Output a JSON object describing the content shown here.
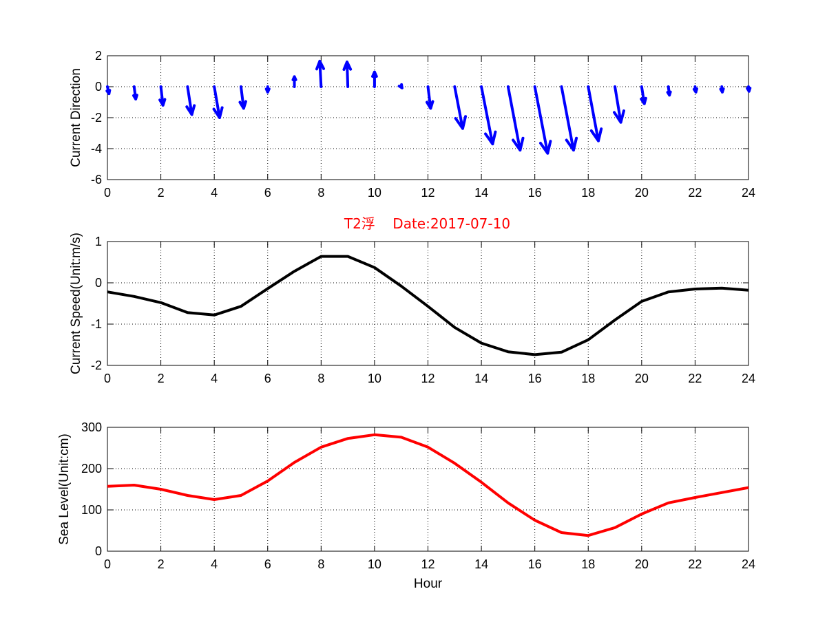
{
  "chart_data": [
    {
      "type": "quiver",
      "ylabel": "Current Direction",
      "xlabel": "",
      "xlim": [
        0,
        24
      ],
      "ylim": [
        -6,
        2
      ],
      "xticks": [
        0,
        2,
        4,
        6,
        8,
        10,
        12,
        14,
        16,
        18,
        20,
        22,
        24
      ],
      "yticks": [
        -6,
        -4,
        -2,
        0,
        2
      ],
      "grid": true,
      "color": "#0000ff",
      "vectors": [
        {
          "x": 0,
          "u": 0.06,
          "v": -0.45
        },
        {
          "x": 1,
          "u": 0.06,
          "v": -0.8
        },
        {
          "x": 2,
          "u": 0.08,
          "v": -1.2
        },
        {
          "x": 3,
          "u": 0.16,
          "v": -1.8
        },
        {
          "x": 4,
          "u": 0.2,
          "v": -2.0
        },
        {
          "x": 5,
          "u": 0.1,
          "v": -1.4
        },
        {
          "x": 6,
          "u": 0.0,
          "v": -0.35
        },
        {
          "x": 7,
          "u": 0.0,
          "v": 0.65
        },
        {
          "x": 8,
          "u": -0.05,
          "v": 1.65
        },
        {
          "x": 9,
          "u": -0.03,
          "v": 1.6
        },
        {
          "x": 10,
          "u": 0.0,
          "v": 0.95
        },
        {
          "x": 11,
          "u": 0.03,
          "v": -0.08
        },
        {
          "x": 12,
          "u": 0.1,
          "v": -1.4
        },
        {
          "x": 13,
          "u": 0.3,
          "v": -2.7
        },
        {
          "x": 14,
          "u": 0.42,
          "v": -3.7
        },
        {
          "x": 15,
          "u": 0.45,
          "v": -4.1
        },
        {
          "x": 16,
          "u": 0.48,
          "v": -4.3
        },
        {
          "x": 17,
          "u": 0.45,
          "v": -4.1
        },
        {
          "x": 18,
          "u": 0.38,
          "v": -3.5
        },
        {
          "x": 19,
          "u": 0.22,
          "v": -2.3
        },
        {
          "x": 20,
          "u": 0.1,
          "v": -1.1
        },
        {
          "x": 21,
          "u": 0.04,
          "v": -0.55
        },
        {
          "x": 22,
          "u": 0.03,
          "v": -0.35
        },
        {
          "x": 23,
          "u": 0.02,
          "v": -0.35
        },
        {
          "x": 24,
          "u": 0.02,
          "v": -0.3
        }
      ]
    },
    {
      "type": "line",
      "title": "T2浮    Date:2017-07-10",
      "title_color": "#ff0000",
      "ylabel": "Current Speed(Unit:m/s)",
      "xlabel": "",
      "xlim": [
        0,
        24
      ],
      "ylim": [
        -2,
        1
      ],
      "xticks": [
        0,
        2,
        4,
        6,
        8,
        10,
        12,
        14,
        16,
        18,
        20,
        22,
        24
      ],
      "yticks": [
        -2,
        -1,
        0,
        1
      ],
      "grid": true,
      "color": "#000000",
      "x": [
        0,
        1,
        2,
        3,
        4,
        5,
        6,
        7,
        8,
        9,
        10,
        11,
        12,
        13,
        14,
        15,
        16,
        17,
        18,
        19,
        20,
        21,
        22,
        23,
        24
      ],
      "y": [
        -0.22,
        -0.33,
        -0.48,
        -0.72,
        -0.78,
        -0.57,
        -0.14,
        0.28,
        0.64,
        0.64,
        0.37,
        -0.08,
        -0.57,
        -1.08,
        -1.46,
        -1.67,
        -1.74,
        -1.68,
        -1.38,
        -0.9,
        -0.45,
        -0.22,
        -0.15,
        -0.13,
        -0.18
      ]
    },
    {
      "type": "line",
      "ylabel": "Sea Level(Unit:cm)",
      "xlabel": "Hour",
      "xlim": [
        0,
        24
      ],
      "ylim": [
        0,
        300
      ],
      "xticks": [
        0,
        2,
        4,
        6,
        8,
        10,
        12,
        14,
        16,
        18,
        20,
        22,
        24
      ],
      "yticks": [
        0,
        100,
        200,
        300
      ],
      "grid": true,
      "color": "#ff0000",
      "x": [
        0,
        1,
        2,
        3,
        4,
        5,
        6,
        7,
        8,
        9,
        10,
        11,
        12,
        13,
        14,
        15,
        16,
        17,
        18,
        19,
        20,
        21,
        22,
        23,
        24
      ],
      "y": [
        157,
        160,
        150,
        135,
        125,
        135,
        170,
        215,
        252,
        273,
        282,
        276,
        252,
        213,
        167,
        117,
        75,
        45,
        38,
        57,
        90,
        117,
        130,
        142,
        154
      ]
    }
  ]
}
